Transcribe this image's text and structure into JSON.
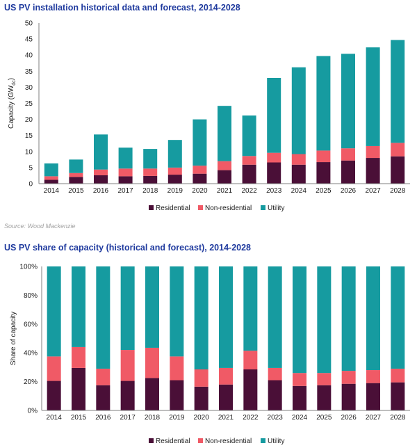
{
  "chart_data": [
    {
      "type": "bar",
      "stacked": true,
      "title": "US PV installation historical data and forecast, 2014-2028",
      "ylabel_main": "Capacity (GW",
      "ylabel_sub": "dc",
      "ylabel_end": ")",
      "ylim": [
        0,
        50
      ],
      "yticks": [
        "0",
        "5",
        "10",
        "15",
        "20",
        "25",
        "30",
        "35",
        "40",
        "45",
        "50"
      ],
      "categories": [
        "2014",
        "2015",
        "2016",
        "2017",
        "2018",
        "2019",
        "2020",
        "2021",
        "2022",
        "2023",
        "2024",
        "2025",
        "2026",
        "2027",
        "2028"
      ],
      "series": [
        {
          "name": "Residential",
          "color": "#4a0f37",
          "values": [
            1.2,
            2.1,
            2.6,
            2.3,
            2.4,
            2.8,
            3.1,
            4.2,
            5.9,
            6.6,
            5.9,
            6.7,
            7.2,
            8.0,
            8.5
          ]
        },
        {
          "name": "Non-residential",
          "color": "#f05a66",
          "values": [
            1.1,
            1.2,
            1.8,
            2.4,
            2.3,
            2.2,
            2.5,
            2.8,
            2.7,
            3.0,
            3.3,
            3.6,
            3.8,
            3.7,
            4.2
          ]
        },
        {
          "name": "Utility",
          "color": "#169ba0",
          "values": [
            4.0,
            4.2,
            10.9,
            6.5,
            6.1,
            8.6,
            14.4,
            17.2,
            12.6,
            23.3,
            27.0,
            29.4,
            29.4,
            30.7,
            32.0
          ]
        }
      ],
      "legend": [
        "Residential",
        "Non-residential",
        "Utility"
      ],
      "legend_position": "bottom"
    },
    {
      "type": "bar",
      "stacked": true,
      "percent": true,
      "title": "US PV share of capacity (historical and forecast), 2014-2028",
      "ylabel": "Share of capacity",
      "ylim": [
        0,
        100
      ],
      "yticks": [
        "0%",
        "20%",
        "40%",
        "60%",
        "80%",
        "100%"
      ],
      "categories": [
        "2014",
        "2015",
        "2016",
        "2017",
        "2018",
        "2019",
        "2020",
        "2021",
        "2022",
        "2023",
        "2024",
        "2025",
        "2026",
        "2027",
        "2028"
      ],
      "series": [
        {
          "name": "Residential",
          "color": "#4a0f37",
          "values": [
            20.5,
            29.5,
            17.5,
            20.5,
            22.5,
            21.0,
            16.5,
            18.0,
            28.5,
            21.0,
            17.0,
            17.5,
            18.5,
            19.0,
            19.5
          ]
        },
        {
          "name": "Non-residential",
          "color": "#f05a66",
          "values": [
            17.0,
            14.5,
            11.5,
            21.5,
            21.0,
            16.5,
            12.0,
            11.5,
            13.0,
            8.5,
            9.0,
            8.5,
            9.0,
            9.0,
            9.5
          ]
        },
        {
          "name": "Utility",
          "color": "#169ba0",
          "values": [
            62.5,
            56.0,
            71.0,
            58.0,
            56.5,
            62.5,
            71.5,
            70.5,
            58.5,
            70.5,
            74.0,
            74.0,
            72.5,
            72.0,
            71.0
          ]
        }
      ],
      "legend": [
        "Residential",
        "Non-residential",
        "Utility"
      ],
      "legend_position": "bottom"
    }
  ],
  "source": "Source: Wood Mackenzie"
}
